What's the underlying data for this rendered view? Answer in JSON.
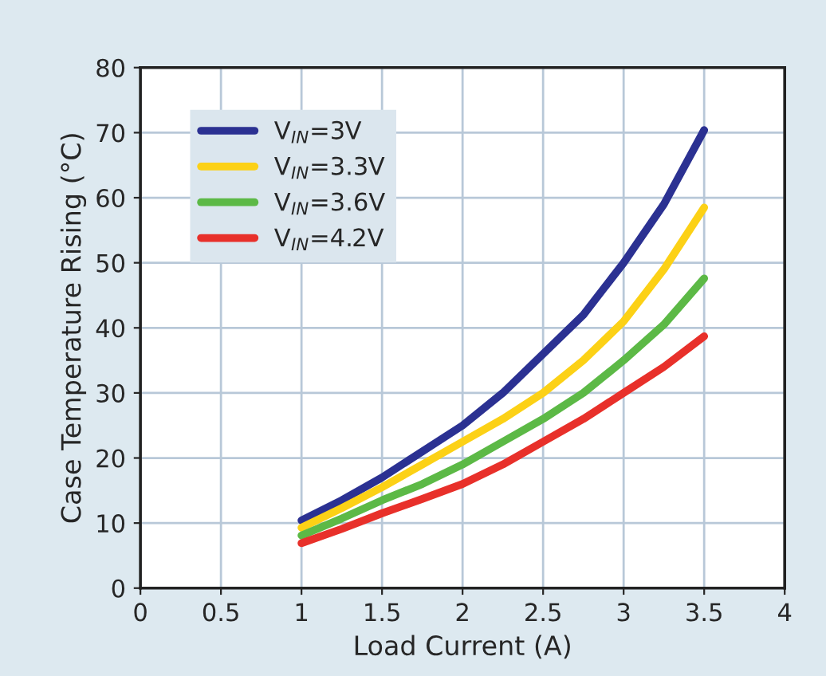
{
  "chart_data": {
    "type": "line",
    "xlabel": "Load Current (A)",
    "ylabel": "Case Temperature Rising (°C)",
    "x": [
      1,
      1.25,
      1.5,
      1.75,
      2,
      2.25,
      2.5,
      2.75,
      3,
      3.25,
      3.5
    ],
    "series": [
      {
        "name": "V$_{IN}$=3V",
        "color": "#2b3192",
        "values": [
          10.4,
          13.5,
          17,
          21,
          25,
          30,
          36,
          42,
          50,
          59,
          70.4
        ]
      },
      {
        "name": "V$_{IN}$=3.3V",
        "color": "#fcd116",
        "values": [
          9.3,
          12.3,
          15.5,
          19,
          22.5,
          26,
          30,
          35,
          41,
          49,
          58.5
        ]
      },
      {
        "name": "V$_{IN}$=3.6V",
        "color": "#5cb946",
        "values": [
          8.1,
          10.7,
          13.5,
          16,
          19,
          22.5,
          26,
          30,
          35,
          40.5,
          47.6
        ]
      },
      {
        "name": "V$_{IN}$=4.2V",
        "color": "#e8302a",
        "values": [
          6.9,
          9.1,
          11.5,
          13.7,
          16,
          19,
          22.5,
          26,
          30,
          34,
          38.7
        ]
      }
    ],
    "xlim": [
      0,
      4
    ],
    "xticks": [
      0,
      {
        "value": 0.5,
        "label": "0.5"
      },
      1,
      {
        "value": 1.5,
        "label": "1.5"
      },
      2,
      {
        "value": 2.5,
        "label": "2.5"
      },
      3,
      {
        "value": 3.5,
        "label": "3.5"
      },
      4
    ],
    "ylim": [
      0,
      80
    ],
    "yticks": [
      0,
      10,
      20,
      30,
      40,
      50,
      60,
      70,
      80
    ],
    "grid": true,
    "legend": "top left",
    "line_style": "solid",
    "marker": "none"
  }
}
